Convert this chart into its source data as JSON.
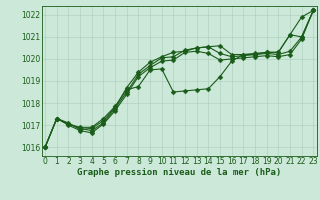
{
  "background_color": "#cce8d8",
  "grid_color": "#aaccbb",
  "line_color": "#1a5c1a",
  "ylabel_values": [
    1016,
    1017,
    1018,
    1019,
    1020,
    1021,
    1022
  ],
  "ylim": [
    1015.6,
    1022.4
  ],
  "xlim": [
    -0.3,
    23.3
  ],
  "xlabel": "Graphe pression niveau de la mer (hPa)",
  "xlabel_fontsize": 6.5,
  "series": [
    [
      1016.0,
      1017.3,
      1017.1,
      1016.8,
      1016.85,
      1017.2,
      1017.8,
      1018.7,
      1019.4,
      1019.85,
      1020.1,
      1020.3,
      1020.35,
      1020.5,
      1020.55,
      1020.6,
      1020.2,
      1020.2,
      1020.2,
      1020.3,
      1020.3,
      1021.1,
      1021.9,
      1022.2
    ],
    [
      1016.0,
      1017.3,
      1017.05,
      1016.9,
      1016.9,
      1017.3,
      1017.85,
      1018.6,
      1018.75,
      1019.5,
      1019.55,
      1018.5,
      1018.55,
      1018.6,
      1018.65,
      1019.2,
      1019.9,
      1020.2,
      1020.25,
      1020.3,
      1020.3,
      1021.1,
      1021.0,
      1022.2
    ],
    [
      1016.0,
      1017.3,
      1017.05,
      1016.85,
      1016.75,
      1017.1,
      1017.75,
      1018.5,
      1019.3,
      1019.7,
      1020.05,
      1020.1,
      1020.4,
      1020.5,
      1020.55,
      1020.25,
      1020.1,
      1020.15,
      1020.2,
      1020.25,
      1020.2,
      1020.35,
      1021.0,
      1022.2
    ],
    [
      1016.0,
      1017.3,
      1017.0,
      1016.75,
      1016.65,
      1017.05,
      1017.65,
      1018.4,
      1019.2,
      1019.6,
      1019.9,
      1019.95,
      1020.3,
      1020.35,
      1020.25,
      1019.95,
      1020.0,
      1020.05,
      1020.1,
      1020.15,
      1020.1,
      1020.2,
      1020.9,
      1022.2
    ]
  ],
  "marker_size": 2.5,
  "line_width": 0.8,
  "tick_fontsize": 5.5,
  "figsize": [
    3.2,
    2.0
  ],
  "dpi": 100
}
